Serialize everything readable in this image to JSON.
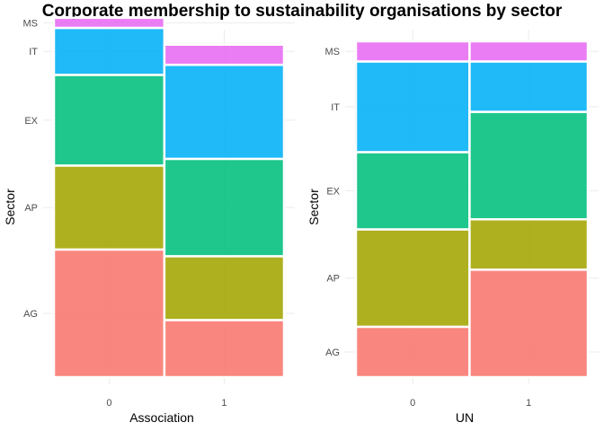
{
  "title": "Corporate membership to sustainability organisations by sector",
  "colors": {
    "AG": "#F8766D",
    "AP": "#A3A500",
    "EX": "#00BF7D",
    "IT": "#00B0F6",
    "MS": "#E76BF3",
    "grid": "#ebebeb",
    "separator": "#ffffff"
  },
  "chart_data": [
    {
      "type": "mosaic",
      "xlabel": "Association",
      "ylabel": "Sector",
      "categories": [
        "0",
        "1"
      ],
      "column_widths": [
        0.48,
        0.52
      ],
      "y_levels": [
        "AG",
        "AP",
        "EX",
        "IT",
        "MS"
      ],
      "y_tick_labels": [
        "AG",
        "AP",
        "EX",
        "IT",
        "MS"
      ],
      "series": [
        {
          "name": "AG",
          "values": [
            0.38,
            0.17
          ]
        },
        {
          "name": "AP",
          "values": [
            0.25,
            0.19
          ]
        },
        {
          "name": "EX",
          "values": [
            0.27,
            0.29
          ]
        },
        {
          "name": "IT",
          "values": [
            0.14,
            0.28
          ]
        },
        {
          "name": "MS",
          "values": [
            0.03,
            0.06
          ]
        }
      ]
    },
    {
      "type": "mosaic",
      "xlabel": "UN",
      "ylabel": "Sector",
      "categories": [
        "0",
        "1"
      ],
      "column_widths": [
        0.49,
        0.51
      ],
      "y_levels": [
        "AG",
        "AP",
        "EX",
        "IT",
        "MS"
      ],
      "y_tick_labels": [
        "AG",
        "AP",
        "EX",
        "IT",
        "MS"
      ],
      "series": [
        {
          "name": "AG",
          "values": [
            0.15,
            0.32
          ]
        },
        {
          "name": "AP",
          "values": [
            0.29,
            0.15
          ]
        },
        {
          "name": "EX",
          "values": [
            0.23,
            0.32
          ]
        },
        {
          "name": "IT",
          "values": [
            0.27,
            0.15
          ]
        },
        {
          "name": "MS",
          "values": [
            0.06,
            0.06
          ]
        }
      ]
    }
  ]
}
